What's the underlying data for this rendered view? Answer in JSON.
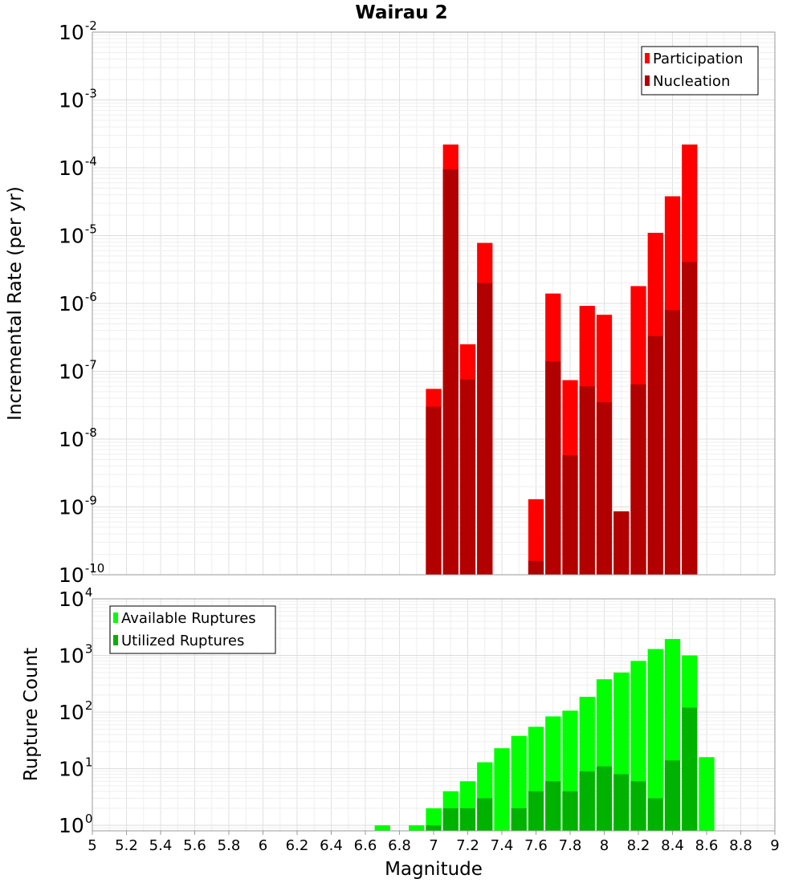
{
  "chart_data": [
    {
      "type": "bar",
      "title": "Wairau 2",
      "xlabel": "",
      "ylabel": "Incremental Rate (per yr)",
      "yscale": "log",
      "xlim": [
        5,
        9
      ],
      "ylim": [
        1e-10,
        0.01
      ],
      "y_tick_exponents": [
        -10,
        -9,
        -8,
        -7,
        -6,
        -5,
        -4,
        -3,
        -2
      ],
      "legend_placement": "top-right",
      "grid": true,
      "bin_width": 0.1,
      "x": [
        7.0,
        7.1,
        7.2,
        7.3,
        7.6,
        7.7,
        7.8,
        7.9,
        8.0,
        8.1,
        8.2,
        8.3,
        8.4,
        8.5
      ],
      "series": [
        {
          "name": "Participation",
          "color": "#ff0000",
          "values": [
            5.5e-08,
            0.00022,
            2.5e-07,
            7.8e-06,
            1.3e-09,
            1.4e-06,
            7.4e-08,
            9.2e-07,
            6.8e-07,
            8.6e-10,
            1.8e-06,
            1.1e-05,
            3.8e-05,
            0.00022
          ]
        },
        {
          "name": "Nucleation",
          "color": "#b20000",
          "values": [
            3e-08,
            9.5e-05,
            7.6e-08,
            2e-06,
            1.6e-10,
            1.4e-07,
            5.8e-09,
            6e-08,
            3.5e-08,
            8.6e-10,
            6.4e-08,
            3.3e-07,
            8e-07,
            4.1e-06
          ]
        }
      ]
    },
    {
      "type": "bar",
      "title": "",
      "xlabel": "Magnitude",
      "ylabel": "Rupture Count",
      "yscale": "log",
      "xlim": [
        5,
        9
      ],
      "ylim": [
        0.8,
        10000.0
      ],
      "y_tick_exponents": [
        0,
        1,
        2,
        3,
        4
      ],
      "x_ticks": [
        "5",
        "5.2",
        "5.4",
        "5.6",
        "5.8",
        "6",
        "6.2",
        "6.4",
        "6.6",
        "6.8",
        "7",
        "7.2",
        "7.4",
        "7.6",
        "7.8",
        "8",
        "8.2",
        "8.4",
        "8.6",
        "8.8",
        "9"
      ],
      "legend_placement": "top-left",
      "grid": true,
      "bin_width": 0.1,
      "x": [
        6.7,
        6.9,
        7.0,
        7.1,
        7.2,
        7.3,
        7.4,
        7.5,
        7.6,
        7.7,
        7.8,
        7.9,
        8.0,
        8.1,
        8.2,
        8.3,
        8.4,
        8.5,
        8.6
      ],
      "series": [
        {
          "name": "Available Ruptures",
          "color": "#00ff00",
          "values": [
            1,
            1,
            2,
            4,
            6,
            13,
            23,
            38,
            55,
            84,
            106,
            186,
            380,
            500,
            800,
            1300,
            1950,
            1000,
            16
          ]
        },
        {
          "name": "Utilized Ruptures",
          "color": "#00b200",
          "values": [
            0,
            0,
            1,
            2,
            2,
            3,
            0,
            2,
            4,
            6,
            4,
            9,
            11,
            8,
            6,
            3,
            14,
            120,
            0
          ]
        }
      ]
    }
  ]
}
